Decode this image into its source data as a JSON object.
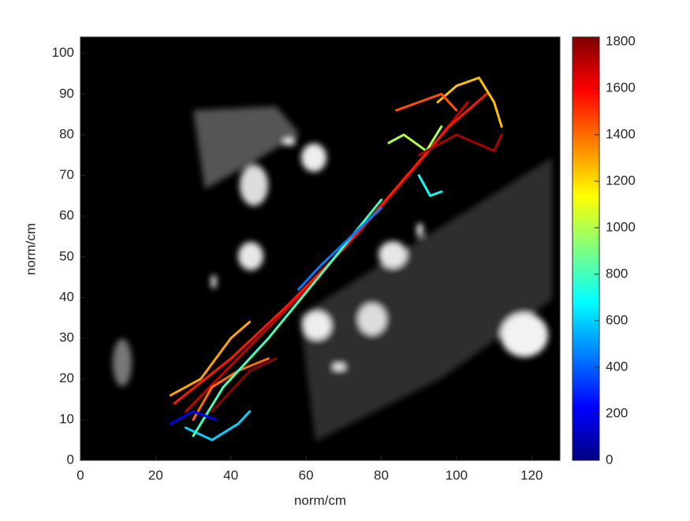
{
  "chart_data": {
    "type": "line",
    "xlabel": "norm/cm",
    "ylabel": "norm/cm",
    "xlim": [
      0,
      127.5
    ],
    "ylim": [
      0,
      104
    ],
    "xticks": [
      0,
      20,
      40,
      60,
      80,
      100,
      120
    ],
    "yticks": [
      0,
      10,
      20,
      30,
      40,
      50,
      60,
      70,
      80,
      90,
      100
    ],
    "colorbar": {
      "colormap": "jet",
      "clim": [
        0,
        1820
      ],
      "ticks": [
        0,
        200,
        400,
        600,
        800,
        1000,
        1200,
        1400,
        1600,
        1800
      ]
    },
    "series": [
      {
        "t": 1700,
        "x": [
          28,
          45,
          60,
          75,
          90,
          103
        ],
        "values": [
          12,
          28,
          42,
          57,
          73,
          88
        ]
      },
      {
        "t": 1550,
        "x": [
          25,
          40,
          55,
          70,
          85,
          98,
          108
        ],
        "values": [
          14,
          25,
          38,
          52,
          68,
          82,
          90
        ]
      },
      {
        "t": 1400,
        "x": [
          30,
          35,
          42,
          50
        ],
        "values": [
          10,
          18,
          22,
          25
        ]
      },
      {
        "t": 1300,
        "x": [
          24,
          32,
          40,
          45
        ],
        "values": [
          16,
          20,
          30,
          34
        ]
      },
      {
        "t": 600,
        "x": [
          28,
          35,
          42,
          45
        ],
        "values": [
          8,
          5,
          9,
          12
        ]
      },
      {
        "t": 800,
        "x": [
          30,
          38,
          50,
          66,
          80
        ],
        "values": [
          6,
          18,
          30,
          48,
          64
        ]
      },
      {
        "t": 1000,
        "x": [
          82,
          86,
          92,
          96
        ],
        "values": [
          78,
          80,
          76,
          82
        ]
      },
      {
        "t": 1250,
        "x": [
          95,
          100,
          106,
          110,
          112
        ],
        "values": [
          88,
          92,
          94,
          88,
          82
        ]
      },
      {
        "t": 1750,
        "x": [
          90,
          100,
          110,
          112
        ],
        "values": [
          75,
          80,
          76,
          80
        ]
      },
      {
        "t": 200,
        "x": [
          24,
          30,
          36
        ],
        "values": [
          9,
          12,
          10
        ]
      },
      {
        "t": 450,
        "x": [
          58,
          64,
          72,
          80
        ],
        "values": [
          42,
          48,
          55,
          62
        ]
      },
      {
        "t": 1450,
        "x": [
          84,
          90,
          96,
          100
        ],
        "values": [
          86,
          88,
          90,
          86
        ]
      },
      {
        "t": 700,
        "x": [
          90,
          93,
          96
        ],
        "values": [
          70,
          65,
          66
        ]
      },
      {
        "t": 1800,
        "x": [
          35,
          45,
          52
        ],
        "values": [
          12,
          22,
          25
        ]
      }
    ]
  }
}
